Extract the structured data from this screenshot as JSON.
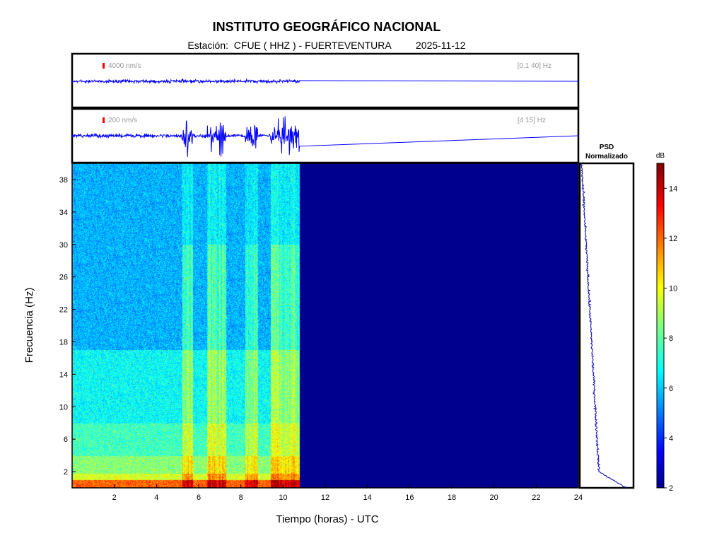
{
  "header": {
    "title": "INSTITUTO GEOGRÁFICO NACIONAL",
    "station_label": "Estación:",
    "station": "CFUE ( HHZ ) - FUERTEVENTURA",
    "date": "2025-11-12"
  },
  "panels": {
    "broadband": {
      "scale_label": "4000 nm/s",
      "band_label": "[0.1 40] Hz"
    },
    "filtered": {
      "scale_label": "200 nm/s",
      "band_label": "[4 15] Hz"
    }
  },
  "psd": {
    "title_line1": "PSD",
    "title_line2": "Normalizado"
  },
  "colorbar": {
    "unit": "dB",
    "ticks": [
      "2",
      "4",
      "6",
      "8",
      "10",
      "12",
      "14"
    ],
    "tick_values": [
      2,
      4,
      6,
      8,
      10,
      12,
      14
    ],
    "range": [
      2,
      15
    ],
    "colormap": "jet"
  },
  "chart_data": {
    "type": "heatmap",
    "xlabel": "Tiempo (horas) - UTC",
    "ylabel": "Frecuencia  (Hz)",
    "xlim": [
      0,
      24
    ],
    "ylim": [
      0,
      40
    ],
    "x_ticks": [
      "2",
      "4",
      "6",
      "8",
      "10",
      "12",
      "14",
      "16",
      "18",
      "20",
      "22",
      "24"
    ],
    "x_tick_values": [
      2,
      4,
      6,
      8,
      10,
      12,
      14,
      16,
      18,
      20,
      22,
      24
    ],
    "y_ticks": [
      "2",
      "6",
      "10",
      "14",
      "18",
      "22",
      "26",
      "30",
      "34",
      "38"
    ],
    "y_tick_values": [
      2,
      6,
      10,
      14,
      18,
      22,
      26,
      30,
      34,
      38
    ],
    "data_end_hour": 10.8,
    "high_energy_band_hz": [
      0,
      1
    ],
    "activity_windows_hours": [
      [
        5.2,
        5.7
      ],
      [
        6.4,
        7.3
      ],
      [
        8.2,
        8.8
      ],
      [
        9.4,
        10.8
      ]
    ],
    "colors": {
      "no_data": "#00008f",
      "trace": "#0000ff",
      "marker": "#ff0000"
    }
  }
}
